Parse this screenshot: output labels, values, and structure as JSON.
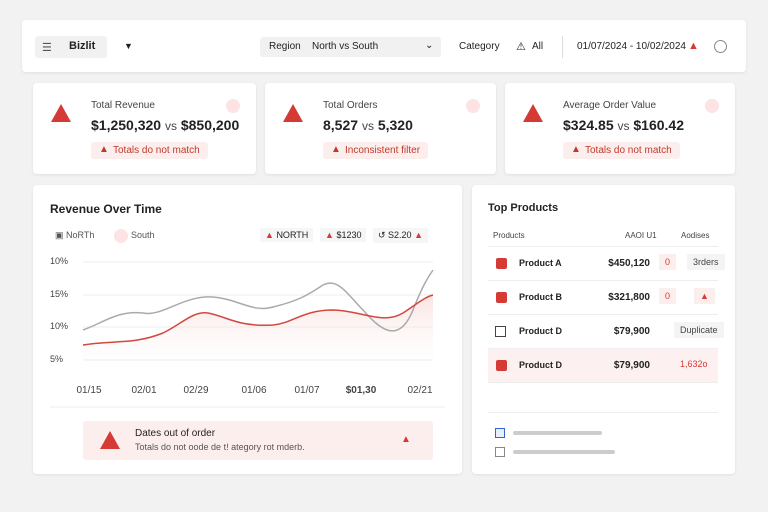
{
  "toolbar": {
    "view": "Bizlit",
    "region_label": "Region",
    "region_value": "North vs South",
    "category_label": "Category",
    "category_value": "All",
    "date_range": "01/07/2024 - 10/02/2024"
  },
  "kpis": [
    {
      "label": "Total Revenue",
      "value_a": "$1,250,320",
      "vs": "vs",
      "value_b": "$850,200",
      "warning": "Totals do not match"
    },
    {
      "label": "Total Orders",
      "value_a": "8,527",
      "vs": "vs",
      "value_b": "5,320",
      "warning": "Inconsistent filter"
    },
    {
      "label": "Average Order Value",
      "value_a": "$324.85",
      "vs": "vs",
      "value_b": "$160.42",
      "warning": "Totals do not match"
    }
  ],
  "revenue_chart": {
    "title": "Revenue Over Time",
    "legend": [
      "NoRTh",
      "South"
    ],
    "badges": [
      "NORTH",
      "$1230",
      "S2.20"
    ],
    "y_labels": [
      "10%",
      "15%",
      "10%",
      "5%"
    ],
    "x_labels": [
      "01/15",
      "02/01",
      "02/29",
      "01/06",
      "01/07",
      "$01,30",
      "02/21"
    ],
    "alert_title": "Dates out of order",
    "alert_text": "Totals do not oode de t! ategory rot mderb."
  },
  "top_products": {
    "title": "Top Products",
    "columns": [
      "Products",
      "AAOI U1",
      "Aodises"
    ],
    "rows": [
      {
        "name": "Product A",
        "value": "$450,120",
        "count": "0",
        "extra": "3rders"
      },
      {
        "name": "Product B",
        "value": "$321,800",
        "count": "0"
      },
      {
        "name": "Product D",
        "value": "$79,900",
        "extra": "Duplicate"
      },
      {
        "name": "Product D",
        "value": "$79,900",
        "extra": "1,632o"
      }
    ]
  }
}
